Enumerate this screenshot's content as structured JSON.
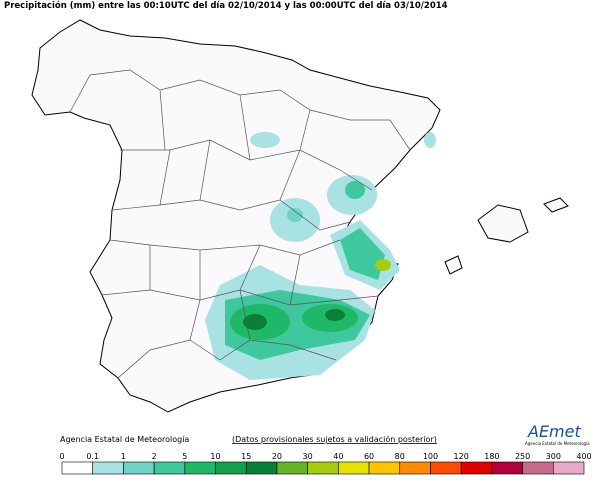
{
  "header": {
    "title": "Precipitación (mm) entre las 00:10UTC del día 02/10/2014 y las 00:00UTC del día 03/10/2014"
  },
  "footer": {
    "agency": "Agencia Estatal de Meteorología",
    "notice": "(Datos provisionales sujetos a validación posterior)",
    "logo": "AEmet",
    "logo_caption": "Agencia Estatal de Meteorología"
  },
  "legend": {
    "labels": [
      "0",
      "0.1",
      "1",
      "2",
      "5",
      "10",
      "15",
      "20",
      "30",
      "40",
      "60",
      "80",
      "100",
      "120",
      "180",
      "250",
      "300",
      "400"
    ],
    "colors": [
      "#ffffff",
      "#a8e2e2",
      "#6fd3c6",
      "#3fc79e",
      "#1fb866",
      "#12a14a",
      "#0a7f38",
      "#66b424",
      "#a6cc10",
      "#e4e400",
      "#ffc400",
      "#ff8a00",
      "#ff4a00",
      "#e00000",
      "#b4003a",
      "#c86a8c",
      "#e8aac8"
    ]
  }
}
